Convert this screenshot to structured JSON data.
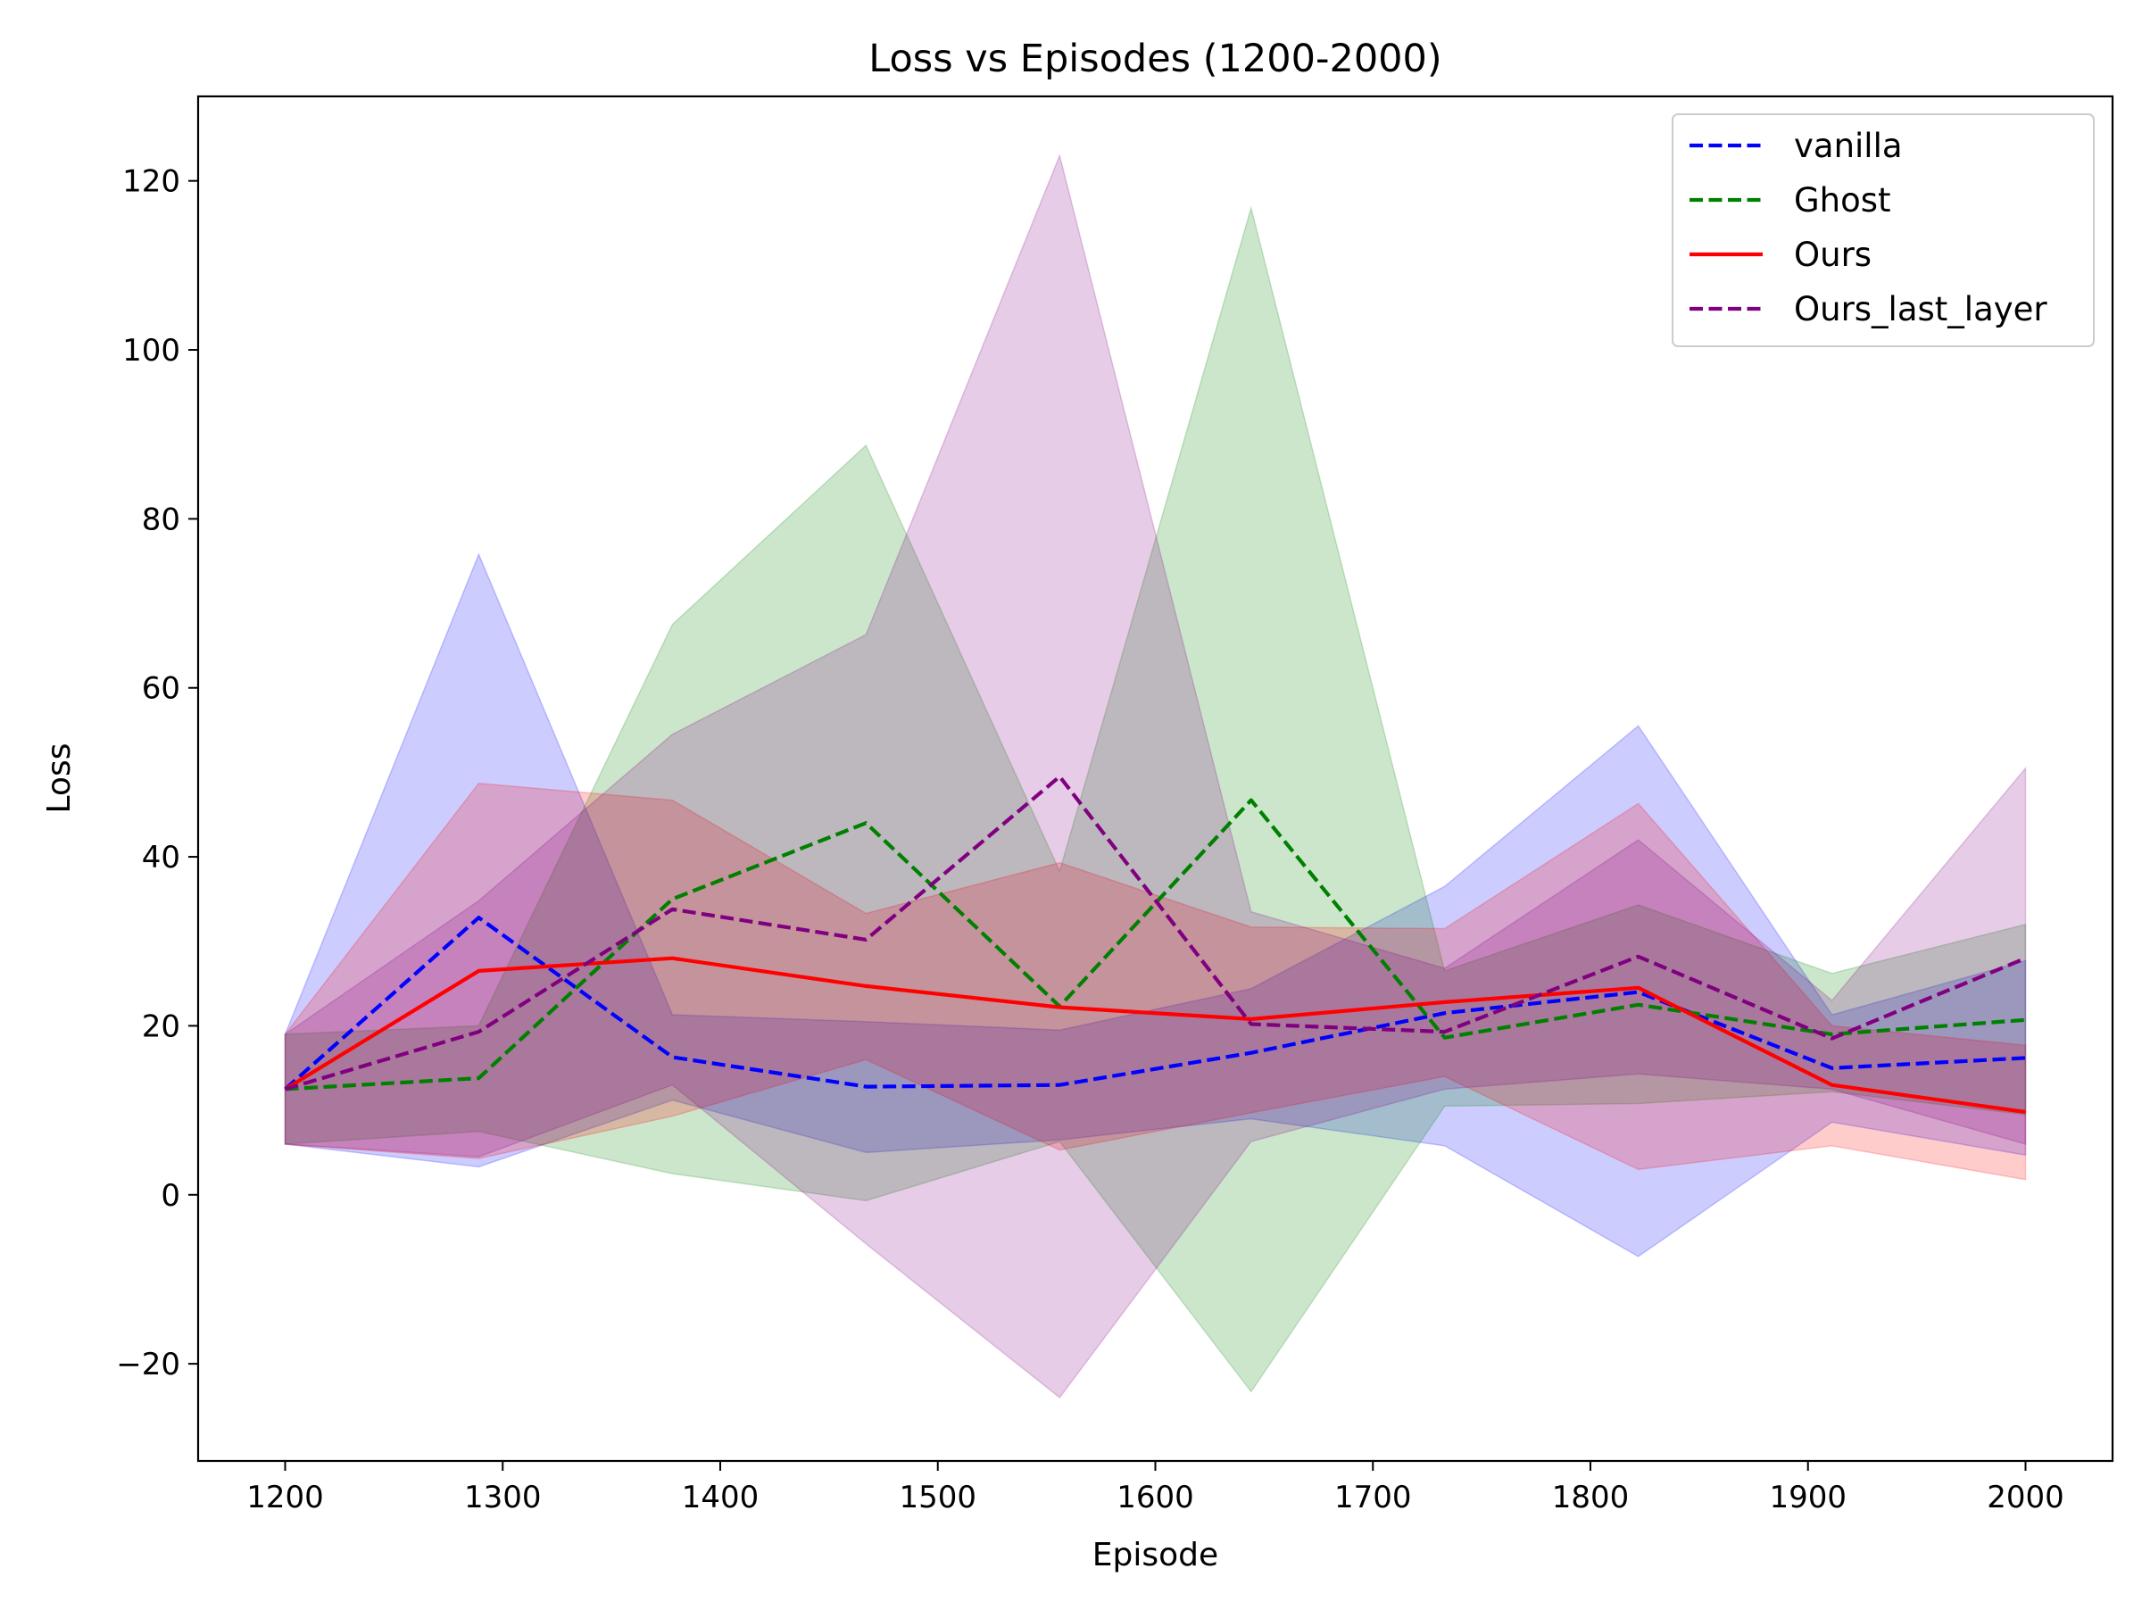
{
  "chart_data": {
    "type": "line",
    "title": "Loss vs Episodes (1200-2000)",
    "xlabel": "Episode",
    "ylabel": "Loss",
    "xlim": [
      1160,
      2040
    ],
    "ylim": [
      -31.5,
      130
    ],
    "xticks": [
      1200,
      1300,
      1400,
      1500,
      1600,
      1700,
      1800,
      1900,
      2000
    ],
    "xtick_labels": [
      "1200",
      "1300",
      "1400",
      "1500",
      "1600",
      "1700",
      "1800",
      "1900",
      "2000"
    ],
    "yticks": [
      -20,
      0,
      20,
      40,
      60,
      80,
      100,
      120
    ],
    "ytick_labels": [
      "−20",
      "0",
      "20",
      "40",
      "60",
      "80",
      "100",
      "120"
    ],
    "grid": false,
    "legend_position": "top-right",
    "x": [
      1200,
      1289,
      1378,
      1467,
      1556,
      1644,
      1733,
      1822,
      1911,
      2000
    ],
    "series": [
      {
        "name": "vanilla",
        "color": "#0000ff",
        "linestyle": "dashed",
        "values": [
          12.5,
          32.8,
          16.3,
          12.8,
          13.0,
          16.8,
          21.5,
          24.0,
          15.0,
          16.2
        ],
        "upper": [
          19.0,
          75.8,
          21.3,
          20.5,
          19.5,
          24.4,
          36.5,
          55.5,
          21.3,
          27.7
        ],
        "lower": [
          6.0,
          3.3,
          11.2,
          5.0,
          6.5,
          9.0,
          5.8,
          -7.3,
          8.6,
          4.7
        ]
      },
      {
        "name": "Ghost",
        "color": "#008000",
        "linestyle": "dashed",
        "values": [
          12.5,
          13.8,
          35.0,
          44.0,
          22.3,
          46.7,
          18.6,
          22.5,
          19.0,
          20.7
        ],
        "upper": [
          19.0,
          20.0,
          67.5,
          88.7,
          38.3,
          116.8,
          26.5,
          34.3,
          26.2,
          32.0
        ],
        "lower": [
          6.0,
          7.5,
          2.5,
          -0.7,
          6.3,
          -23.3,
          10.5,
          10.8,
          12.2,
          9.5
        ]
      },
      {
        "name": "Ours",
        "color": "#ff0000",
        "linestyle": "solid",
        "values": [
          12.5,
          26.5,
          28.0,
          24.7,
          22.2,
          20.8,
          22.8,
          24.5,
          13.0,
          9.8
        ],
        "upper": [
          19.0,
          48.7,
          46.7,
          33.3,
          39.3,
          31.7,
          31.5,
          46.3,
          20.0,
          17.7
        ],
        "lower": [
          6.0,
          4.3,
          9.3,
          16.0,
          5.3,
          9.7,
          14.0,
          3.0,
          5.8,
          1.8
        ]
      },
      {
        "name": "Ours_last_layer",
        "color": "#800080",
        "linestyle": "dashed",
        "values": [
          12.5,
          19.3,
          33.8,
          30.2,
          49.5,
          20.2,
          19.3,
          28.2,
          18.5,
          28.0
        ],
        "upper": [
          19.0,
          34.8,
          54.5,
          66.3,
          123.0,
          33.5,
          26.8,
          42.0,
          23.0,
          50.5
        ],
        "lower": [
          6.0,
          4.5,
          13.0,
          -5.8,
          -24.0,
          6.3,
          12.5,
          14.3,
          12.5,
          6.0
        ]
      }
    ]
  }
}
